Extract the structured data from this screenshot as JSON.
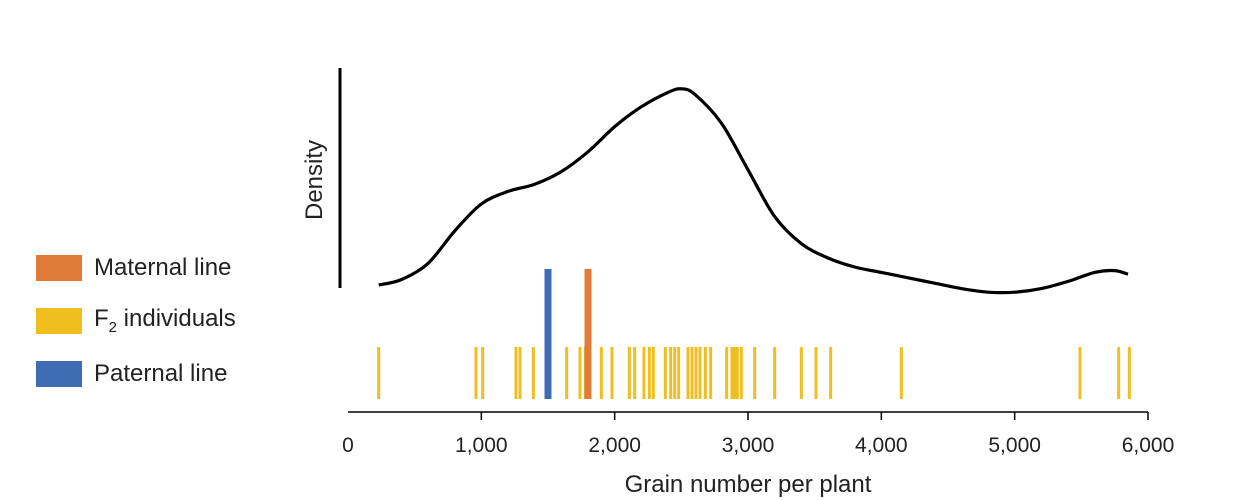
{
  "chart_data": {
    "type": "density-rug",
    "xlabel": "Grain number per plant",
    "ylabel": "Density",
    "xlim": [
      0,
      6000
    ],
    "xticks": [
      "0",
      "1,000",
      "2,000",
      "3,000",
      "4,000",
      "5,000",
      "6,000"
    ],
    "xtick_values": [
      0,
      1000,
      2000,
      3000,
      4000,
      5000,
      6000
    ],
    "density_curve": {
      "x": [
        230,
        400,
        600,
        800,
        1000,
        1200,
        1400,
        1600,
        1800,
        2000,
        2200,
        2400,
        2500,
        2600,
        2800,
        3000,
        3200,
        3400,
        3600,
        3800,
        4000,
        4200,
        4400,
        4600,
        4800,
        5000,
        5200,
        5400,
        5600,
        5750,
        5850
      ],
      "y": [
        0.0,
        0.03,
        0.12,
        0.3,
        0.45,
        0.52,
        0.56,
        0.63,
        0.74,
        0.88,
        0.99,
        1.07,
        1.09,
        1.06,
        0.9,
        0.64,
        0.38,
        0.23,
        0.15,
        0.1,
        0.07,
        0.04,
        0.01,
        -0.02,
        -0.04,
        -0.04,
        -0.02,
        0.02,
        0.07,
        0.08,
        0.06
      ]
    },
    "series": [
      {
        "name": "Maternal line",
        "color": "#e07b39",
        "values": [
          1800
        ]
      },
      {
        "name": "F2 individuals",
        "color": "#f0bf1f",
        "values": [
          230,
          960,
          1010,
          1260,
          1290,
          1390,
          1640,
          1740,
          1780,
          1810,
          1900,
          1980,
          2110,
          2150,
          2220,
          2260,
          2290,
          2380,
          2420,
          2450,
          2480,
          2550,
          2580,
          2610,
          2640,
          2680,
          2720,
          2840,
          2880,
          2900,
          2920,
          2950,
          3050,
          3200,
          3400,
          3510,
          3620,
          4150,
          5490,
          5780,
          5860
        ]
      },
      {
        "name": "Paternal line",
        "color": "#3f6db3",
        "values": [
          1500
        ]
      }
    ]
  },
  "legend": {
    "items": [
      {
        "label": "Maternal line",
        "color": "#e07b39"
      },
      {
        "label_main": "F",
        "label_sub": "2",
        "label_rest": " individuals",
        "color": "#f0bf1f"
      },
      {
        "label": "Paternal line",
        "color": "#3f6db3"
      }
    ]
  }
}
